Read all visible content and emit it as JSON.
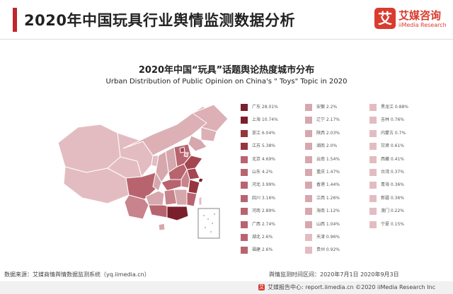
{
  "header": {
    "title": "2020年中国玩具行业舆情监测数据分析",
    "logo_glyph": "艾",
    "logo_cn": "艾媒咨询",
    "logo_en": "iiMedia Research"
  },
  "chart_data": {
    "type": "choropleth-map",
    "title": "2020年中国“玩具”话题舆论热度城市分布",
    "subtitle": "Urban Distribution of Public Opinion on China's \" Toys\" Topic in 2020",
    "unit": "%",
    "entries": [
      {
        "region": "广东",
        "value": 28.01,
        "label": "28.01%"
      },
      {
        "region": "上海",
        "value": 10.74,
        "label": "10.74%"
      },
      {
        "region": "浙江",
        "value": 6.04,
        "label": "6.04%"
      },
      {
        "region": "江苏",
        "value": 5.38,
        "label": "5.38%"
      },
      {
        "region": "北京",
        "value": 4.69,
        "label": "4.69%"
      },
      {
        "region": "山东",
        "value": 4.2,
        "label": "4.2%"
      },
      {
        "region": "河北",
        "value": 3.99,
        "label": "3.99%"
      },
      {
        "region": "四川",
        "value": 3.16,
        "label": "3.16%"
      },
      {
        "region": "河南",
        "value": 2.89,
        "label": "2.89%"
      },
      {
        "region": "广西",
        "value": 2.74,
        "label": "2.74%"
      },
      {
        "region": "湖北",
        "value": 2.6,
        "label": "2.6%"
      },
      {
        "region": "福建",
        "value": 2.6,
        "label": "2.6%"
      },
      {
        "region": "安徽",
        "value": 2.2,
        "label": "2.2%"
      },
      {
        "region": "辽宁",
        "value": 2.17,
        "label": "2.17%"
      },
      {
        "region": "陕西",
        "value": 2.03,
        "label": "2.03%"
      },
      {
        "region": "湖南",
        "value": 2.0,
        "label": "2.0%"
      },
      {
        "region": "云南",
        "value": 1.54,
        "label": "1.54%"
      },
      {
        "region": "重庆",
        "value": 1.47,
        "label": "1.47%"
      },
      {
        "region": "香港",
        "value": 1.44,
        "label": "1.44%"
      },
      {
        "region": "江西",
        "value": 1.26,
        "label": "1.26%"
      },
      {
        "region": "海南",
        "value": 1.12,
        "label": "1.12%"
      },
      {
        "region": "山西",
        "value": 1.04,
        "label": "1.04%"
      },
      {
        "region": "天津",
        "value": 0.96,
        "label": "0.96%"
      },
      {
        "region": "贵州",
        "value": 0.92,
        "label": "0.92%"
      },
      {
        "region": "黑龙江",
        "value": 0.88,
        "label": "0.88%"
      },
      {
        "region": "吉林",
        "value": 0.76,
        "label": "0.76%"
      },
      {
        "region": "内蒙古",
        "value": 0.7,
        "label": "0.7%"
      },
      {
        "region": "甘肃",
        "value": 0.61,
        "label": "0.61%"
      },
      {
        "region": "西藏",
        "value": 0.41,
        "label": "0.41%"
      },
      {
        "region": "台湾",
        "value": 0.37,
        "label": "0.37%"
      },
      {
        "region": "青海",
        "value": 0.36,
        "label": "0.36%"
      },
      {
        "region": "新疆",
        "value": 0.36,
        "label": "0.36%"
      },
      {
        "region": "澳门",
        "value": 0.22,
        "label": "0.22%"
      },
      {
        "region": "宁夏",
        "value": 0.15,
        "label": "0.15%"
      }
    ],
    "legend_columns": 3,
    "legend_rows": 12,
    "colors": {
      "very_high": "#7a1f2b",
      "high": "#96353f",
      "mid": "#b8646f",
      "low": "#d6a7ad",
      "base": "#e3bcc1"
    }
  },
  "footer": {
    "source": "数据来源：艾媒商情舆情数据监测系统（yq.iimedia.cn）",
    "period": "舆情监测时间区间：2020年7月1日  2020年9月3日",
    "logo_glyph": "艾",
    "copyright": "艾媒报告中心: report.iimedia.cn  ©2020  iiMedia Research  Inc"
  }
}
